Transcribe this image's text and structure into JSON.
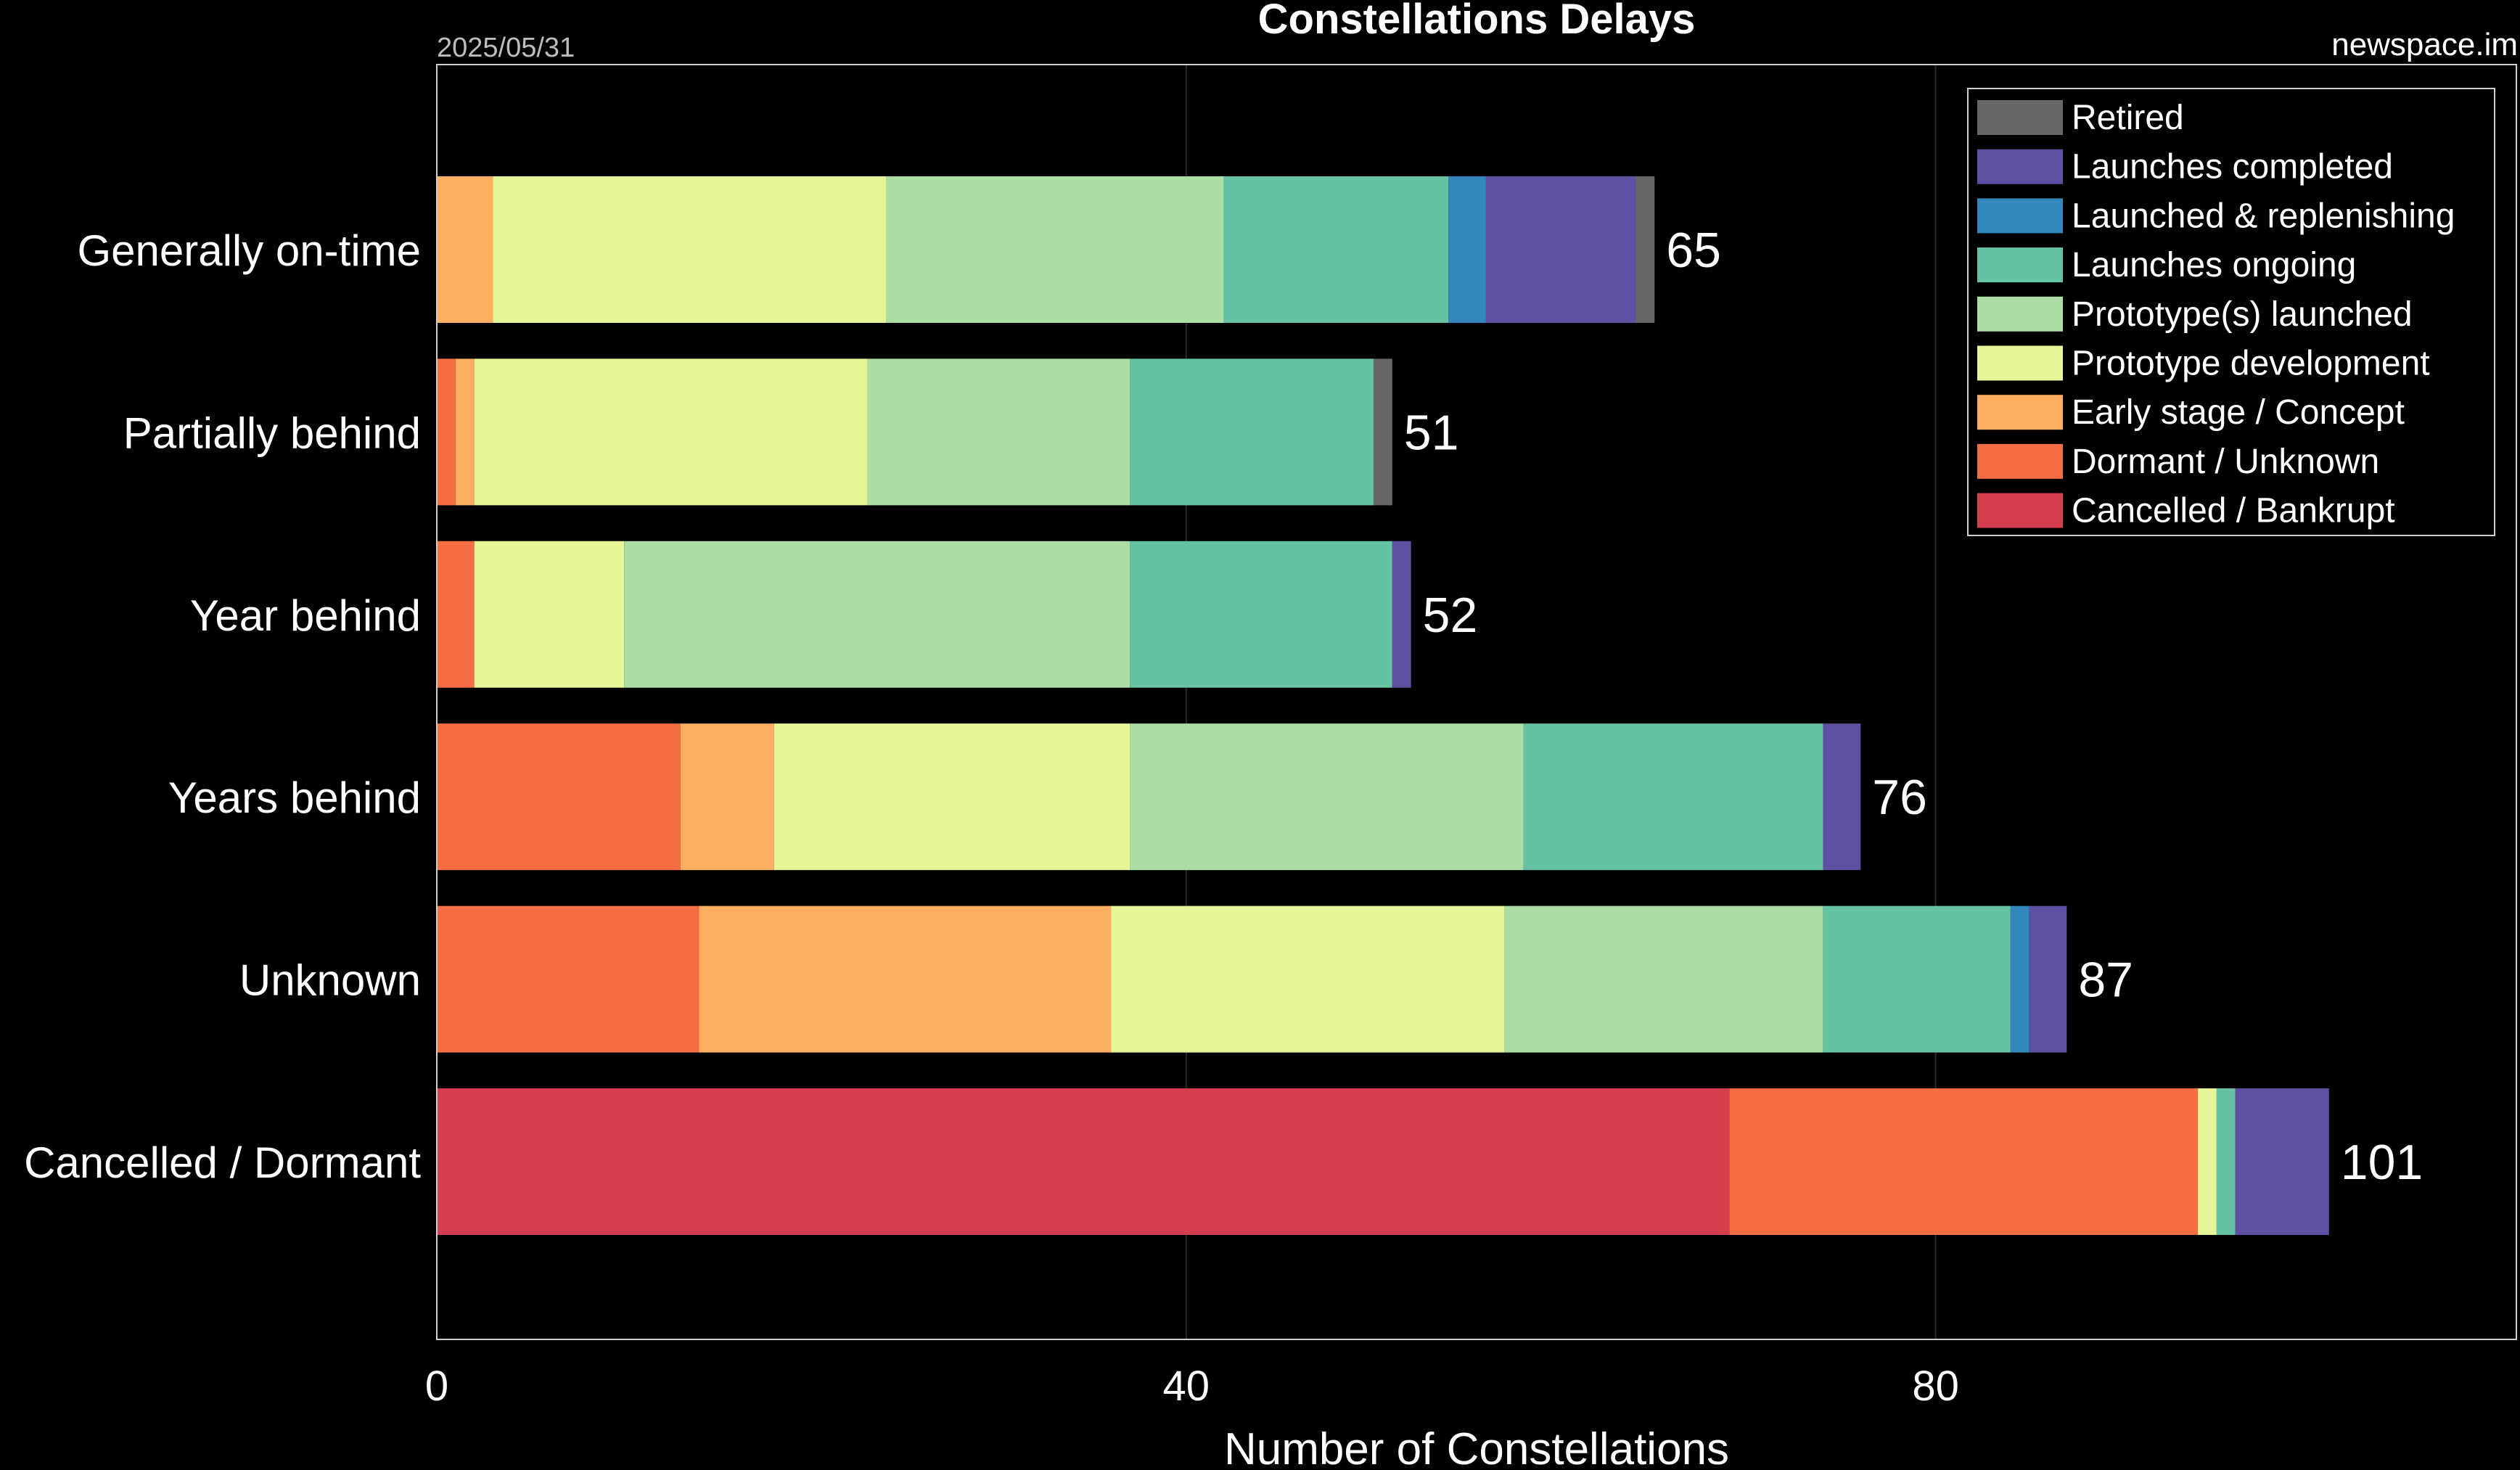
{
  "header": {
    "date": "2025/05/31",
    "source": "newspace.im"
  },
  "chart_data": {
    "type": "bar",
    "orientation": "horizontal",
    "stacked": true,
    "title": "Constellations Delays",
    "xlabel": "Number of Constellations",
    "ylabel": "",
    "xlim": [
      0,
      111
    ],
    "xticks": [
      "0",
      "40",
      "80"
    ],
    "grid": true,
    "legend_position": "top-right",
    "categories": [
      "Generally on-time",
      "Partially behind",
      "Year behind",
      "Years behind",
      "Unknown",
      "Cancelled / Dormant"
    ],
    "totals": [
      "65",
      "51",
      "52",
      "76",
      "87",
      "101"
    ],
    "series": [
      {
        "name": "Cancelled / Bankrupt",
        "color": "#d53e4f",
        "values": [
          0,
          0,
          0,
          0,
          0,
          69
        ]
      },
      {
        "name": "Dormant / Unknown",
        "color": "#f46d43",
        "values": [
          0,
          1,
          2,
          13,
          14,
          25
        ]
      },
      {
        "name": "Early stage / Concept",
        "color": "#fdae61",
        "values": [
          3,
          1,
          0,
          5,
          22,
          0
        ]
      },
      {
        "name": "Prototype development",
        "color": "#e6f598",
        "values": [
          21,
          21,
          8,
          19,
          21,
          1
        ]
      },
      {
        "name": "Prototype(s) launched",
        "color": "#abdda4",
        "values": [
          18,
          14,
          27,
          21,
          17,
          0
        ]
      },
      {
        "name": "Launches ongoing",
        "color": "#66c2a5",
        "values": [
          12,
          13,
          14,
          16,
          10,
          1
        ]
      },
      {
        "name": "Launched & replenishing",
        "color": "#3288bd",
        "values": [
          2,
          0,
          0,
          0,
          1,
          0
        ]
      },
      {
        "name": "Launches completed",
        "color": "#5e4fa2",
        "values": [
          8,
          0,
          1,
          2,
          2,
          5
        ]
      },
      {
        "name": "Retired",
        "color": "#666666",
        "values": [
          1,
          1,
          0,
          0,
          0,
          0
        ]
      }
    ],
    "legend_order": [
      "Retired",
      "Launches completed",
      "Launched & replenishing",
      "Launches ongoing",
      "Prototype(s) launched",
      "Prototype development",
      "Early stage / Concept",
      "Dormant / Unknown",
      "Cancelled / Bankrupt"
    ]
  }
}
